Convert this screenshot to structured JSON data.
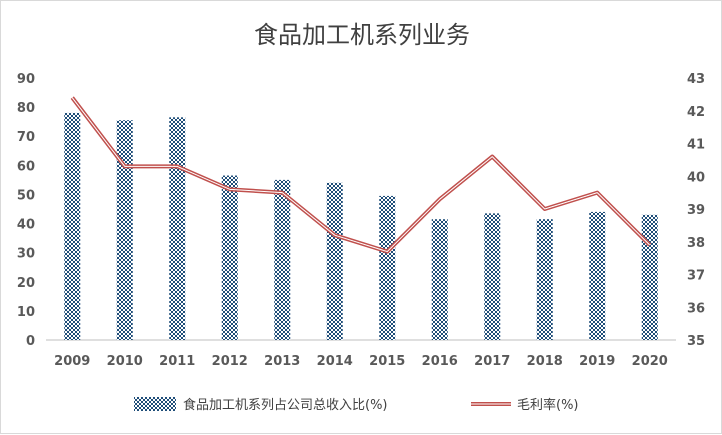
{
  "chart_data": {
    "type": "bar+line",
    "title": "食品加工机系列业务",
    "categories": [
      "2009",
      "2010",
      "2011",
      "2012",
      "2013",
      "2014",
      "2015",
      "2016",
      "2017",
      "2018",
      "2019",
      "2020"
    ],
    "series": [
      {
        "name": "食品加工机系列占公司总收入比(%)",
        "type": "bar",
        "axis": "left",
        "color": "#1f4e79",
        "values": [
          78,
          75.5,
          76.5,
          56.5,
          55,
          54,
          49.5,
          41.5,
          43.5,
          41.5,
          44,
          43
        ]
      },
      {
        "name": "毛利率(%)",
        "type": "line",
        "axis": "right",
        "color": "#c0504d",
        "values": [
          42.4,
          40.3,
          40.3,
          39.6,
          39.5,
          38.2,
          37.7,
          39.3,
          40.6,
          39.0,
          39.5,
          37.9
        ]
      }
    ],
    "y_left": {
      "min": 0,
      "max": 90,
      "ticks": [
        0,
        10,
        20,
        30,
        40,
        50,
        60,
        70,
        80,
        90
      ]
    },
    "y_right": {
      "min": 35,
      "max": 43,
      "ticks": [
        35,
        36,
        37,
        38,
        39,
        40,
        41,
        42,
        43
      ]
    },
    "grid": false,
    "legend_position": "bottom"
  }
}
